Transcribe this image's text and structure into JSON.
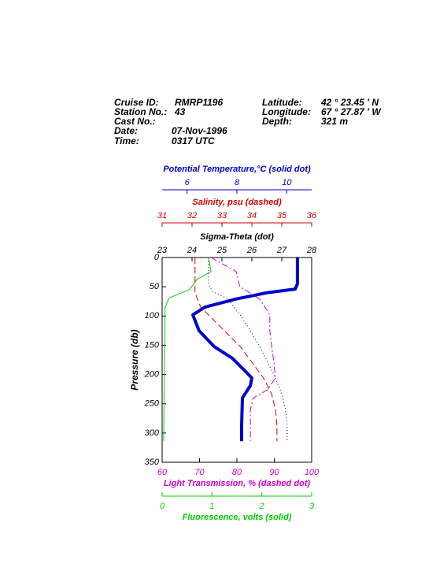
{
  "chart_data": {
    "type": "profile",
    "header": {
      "cruise_label": "Cruise ID:",
      "cruise": "RMRP1196",
      "station_label": "Station No.:",
      "station": "43",
      "cast_label": "Cast No.:",
      "date_label": "Date:",
      "date": "07-Nov-1996",
      "time_label": "Time:",
      "time": "0317 UTC",
      "lat_label": "Latitude:",
      "lat": "42 ° 23.45 ' N",
      "lon_label": "Longitude:",
      "lon": "67 ° 27.87 ' W",
      "depth_label": "Depth:",
      "depth": "321 m"
    },
    "ylabel": "Pressure (db)",
    "ylim": [
      0,
      350
    ],
    "yticks": [
      0,
      50,
      100,
      150,
      200,
      250,
      300,
      350
    ],
    "axes": [
      {
        "label": "Potential Temperature,°C (solid dot)",
        "color": "#0000cc",
        "position": "top",
        "line": "solid",
        "width": 4,
        "xlim": [
          5,
          11
        ],
        "xticks": [
          6,
          8,
          10
        ],
        "pressure": [
          0,
          45,
          54,
          60,
          71,
          85,
          98,
          125,
          152,
          172,
          192,
          206,
          219,
          240,
          287,
          314
        ],
        "values": [
          10.43,
          10.43,
          10.34,
          9.23,
          7.97,
          6.71,
          6.23,
          6.48,
          7.08,
          7.81,
          8.28,
          8.6,
          8.54,
          8.22,
          8.19,
          8.19
        ]
      },
      {
        "label": "Salinity, psu  (dashed)",
        "color": "#cc0000",
        "position": "top",
        "line": "dashed",
        "width": 1,
        "xlim": [
          31,
          36
        ],
        "xticks": [
          31,
          32,
          33,
          34,
          35,
          36
        ],
        "pressure": [
          0,
          60,
          85,
          98,
          125,
          152,
          179,
          206,
          233,
          260,
          287,
          314
        ],
        "values": [
          32.1,
          32.1,
          32.29,
          32.55,
          33.08,
          33.61,
          34.0,
          34.39,
          34.66,
          34.79,
          34.84,
          34.84
        ]
      },
      {
        "label": "Sigma-Theta (dot)",
        "color": "#000000",
        "position": "top",
        "line": "dotted",
        "width": 1,
        "xlim": [
          23,
          28
        ],
        "xticks": [
          23,
          24,
          25,
          26,
          27,
          28
        ],
        "pressure": [
          0,
          45,
          58,
          71,
          98,
          125,
          152,
          179,
          206,
          233,
          260,
          287,
          314
        ],
        "values": [
          24.55,
          24.55,
          24.68,
          25.21,
          25.61,
          25.95,
          26.26,
          26.53,
          26.79,
          27.0,
          27.13,
          27.18,
          27.18
        ]
      },
      {
        "label": "Light Transmission, % (dashed dot)",
        "color": "#cc00cc",
        "position": "bottom",
        "line": "dashdot",
        "width": 1,
        "xlim": [
          60,
          100
        ],
        "xticks": [
          60,
          70,
          80,
          90,
          100
        ],
        "pressure": [
          0,
          24,
          50,
          71,
          98,
          125,
          152,
          179,
          206,
          226,
          240,
          260,
          314
        ],
        "values": [
          73.1,
          79.8,
          80.8,
          86.1,
          88.8,
          88.8,
          89.3,
          89.9,
          90.3,
          88.2,
          84.4,
          83.6,
          83.6
        ]
      },
      {
        "label": "Fluorescence, volts (solid)",
        "color": "#00cc00",
        "position": "bottom",
        "line": "solid",
        "width": 1,
        "xlim": [
          0,
          3
        ],
        "xticks": [
          0,
          1,
          2,
          3
        ],
        "pressure": [
          0,
          24,
          38,
          47,
          55,
          69,
          85,
          314
        ],
        "values": [
          0.93,
          0.98,
          0.69,
          0.62,
          0.54,
          0.14,
          0.06,
          0.03
        ]
      }
    ]
  }
}
